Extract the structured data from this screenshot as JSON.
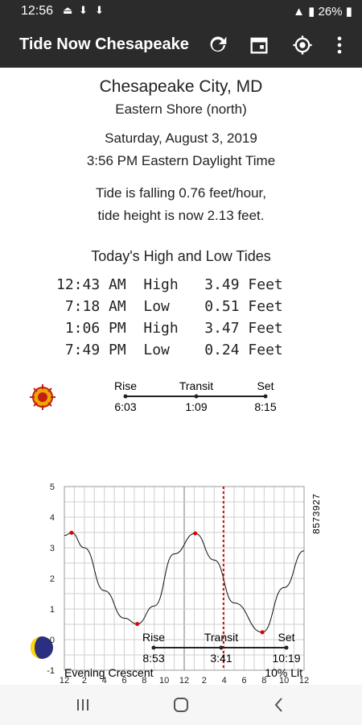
{
  "status": {
    "time": "12:56",
    "battery": "26%"
  },
  "appbar": {
    "title": "Tide Now Chesapeake"
  },
  "location": {
    "name": "Chesapeake City, MD",
    "region": "Eastern Shore (north)"
  },
  "date": {
    "day": "Saturday, August 3, 2019",
    "time": "3:56 PM Eastern Daylight Time"
  },
  "current": {
    "line1": "Tide is falling 0.76 feet/hour,",
    "line2": "tide height is now  2.13 feet."
  },
  "tides": {
    "title": "Today's High and Low Tides",
    "rows": [
      "12:43 AM  High   3.49 Feet",
      " 7:18 AM  Low    0.51 Feet",
      " 1:06 PM  High   3.47 Feet",
      " 7:49 PM  Low    0.24 Feet"
    ]
  },
  "sun": {
    "rise_label": "Rise",
    "transit_label": "Transit",
    "set_label": "Set",
    "rise": "6:03",
    "transit": "1:09",
    "set": "8:15"
  },
  "moon": {
    "rise_label": "Rise",
    "transit_label": "Transit",
    "set_label": "Set",
    "rise": "8:53",
    "transit": "3:41",
    "set": "10:19",
    "phase": "Evening Crescent",
    "lit": "10% Lit"
  },
  "chart_data": {
    "type": "line",
    "x_ticks": [
      "12",
      "2",
      "4",
      "6",
      "8",
      "10",
      "12",
      "2",
      "4",
      "6",
      "8",
      "10",
      "12"
    ],
    "y_ticks": [
      "5",
      "4",
      "3",
      "2",
      "1",
      "0",
      "-1"
    ],
    "ylim": [
      -1,
      5
    ],
    "xlim": [
      0,
      24
    ],
    "station_id": "8573927",
    "current_time_hours": 15.93,
    "series": [
      {
        "x": [
          0,
          0.72,
          2,
          4,
          6,
          7.3,
          9,
          11,
          13.1,
          15,
          17,
          19.82,
          22,
          24
        ],
        "y": [
          3.4,
          3.49,
          3.0,
          1.6,
          0.7,
          0.51,
          1.1,
          2.8,
          3.47,
          2.6,
          1.2,
          0.24,
          1.7,
          2.9
        ]
      }
    ],
    "extrema": [
      {
        "x": 0.72,
        "y": 3.49
      },
      {
        "x": 7.3,
        "y": 0.51
      },
      {
        "x": 13.1,
        "y": 3.47
      },
      {
        "x": 19.82,
        "y": 0.24
      }
    ]
  }
}
